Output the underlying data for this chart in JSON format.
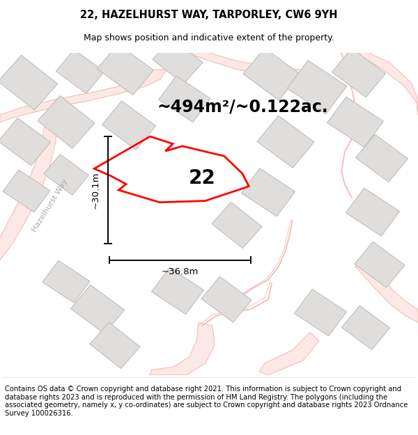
{
  "title": "22, HAZELHURST WAY, TARPORLEY, CW6 9YH",
  "subtitle": "Map shows position and indicative extent of the property.",
  "area_label": "~494m²/~0.122ac.",
  "number_label": "22",
  "width_label": "~36.8m",
  "height_label": "~30.1m",
  "footer_text": "Contains OS data © Crown copyright and database right 2021. This information is subject to Crown copyright and database rights 2023 and is reproduced with the permission of HM Land Registry. The polygons (including the associated geometry, namely x, y co-ordinates) are subject to Crown copyright and database rights 2023 Ordnance Survey 100026316.",
  "map_bg": "#f5f4f2",
  "property_color": "#ff0000",
  "building_fill": "#e0dedd",
  "building_edge": "#c0bebb",
  "road_fill": "#fce8e5",
  "road_edge": "#f0b8b0",
  "title_fontsize": 10.5,
  "subtitle_fontsize": 9,
  "area_fontsize": 17,
  "number_fontsize": 20,
  "dim_fontsize": 9.5,
  "footer_fontsize": 7.2
}
